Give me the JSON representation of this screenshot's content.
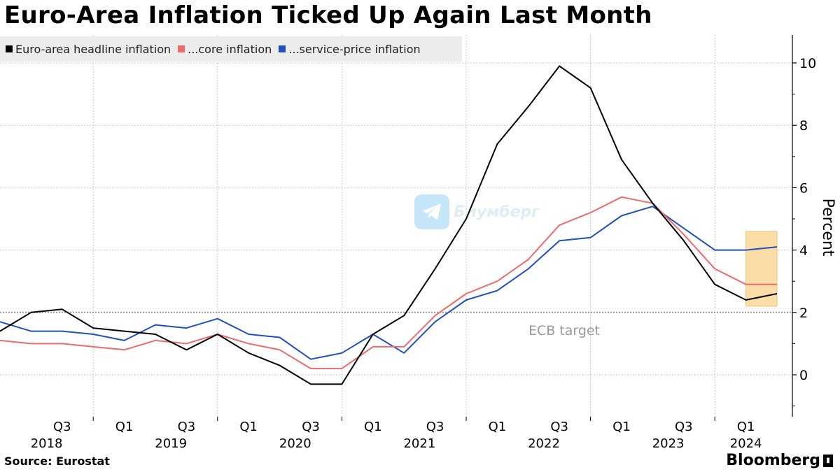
{
  "header": {
    "title": "Euro-Area Inflation Ticked Up Again Last Month"
  },
  "footer": {
    "source": "Source: Eurostat",
    "brand": "Bloomberg"
  },
  "watermark": {
    "text": "Блумберг"
  },
  "chart_data": {
    "type": "line",
    "title": "Euro-Area Inflation Ticked Up Again Last Month",
    "ylabel": "Percent",
    "ylim": [
      -1.2,
      11
    ],
    "yticks": [
      0,
      2,
      4,
      6,
      8,
      10
    ],
    "y_axis_side": "right",
    "grid": true,
    "legend_position": "top-left",
    "x": [
      "2018 Q1",
      "2018 Q2",
      "2018 Q3",
      "2018 Q4",
      "2019 Q1",
      "2019 Q2",
      "2019 Q3",
      "2019 Q4",
      "2020 Q1",
      "2020 Q2",
      "2020 Q3",
      "2020 Q4",
      "2021 Q1",
      "2021 Q2",
      "2021 Q3",
      "2021 Q4",
      "2022 Q1",
      "2022 Q2",
      "2022 Q3",
      "2022 Q4",
      "2023 Q1",
      "2023 Q2",
      "2023 Q3",
      "2023 Q4",
      "2024 Q1",
      "2024 Q2"
    ],
    "x_tick_labels": [
      {
        "label": "Q3",
        "index": 2
      },
      {
        "label": "Q1",
        "index": 4
      },
      {
        "label": "Q3",
        "index": 6
      },
      {
        "label": "Q1",
        "index": 8
      },
      {
        "label": "Q3",
        "index": 10
      },
      {
        "label": "Q1",
        "index": 12
      },
      {
        "label": "Q3",
        "index": 14
      },
      {
        "label": "Q1",
        "index": 16
      },
      {
        "label": "Q3",
        "index": 18
      },
      {
        "label": "Q1",
        "index": 20
      },
      {
        "label": "Q3",
        "index": 22
      },
      {
        "label": "Q1",
        "index": 24
      }
    ],
    "x_year_labels": [
      {
        "label": "2018",
        "index": 1.5
      },
      {
        "label": "2019",
        "index": 5.5
      },
      {
        "label": "2020",
        "index": 9.5
      },
      {
        "label": "2021",
        "index": 13.5
      },
      {
        "label": "2022",
        "index": 17.5
      },
      {
        "label": "2023",
        "index": 21.5
      },
      {
        "label": "2024",
        "index": 24
      }
    ],
    "series": [
      {
        "name": "Euro-area headline inflation",
        "color": "#000000",
        "values": [
          1.4,
          2.0,
          2.1,
          1.5,
          1.4,
          1.3,
          0.8,
          1.3,
          0.7,
          0.3,
          -0.3,
          -0.3,
          1.3,
          1.9,
          3.4,
          5.0,
          7.4,
          8.6,
          9.9,
          9.2,
          6.9,
          5.5,
          4.3,
          2.9,
          2.4,
          2.6
        ]
      },
      {
        "name": "...core inflation",
        "color": "#f06a6a",
        "values": [
          1.1,
          1.0,
          1.0,
          0.9,
          0.8,
          1.1,
          1.0,
          1.3,
          1.0,
          0.8,
          0.2,
          0.2,
          0.9,
          0.9,
          1.9,
          2.6,
          3.0,
          3.7,
          4.8,
          5.2,
          5.7,
          5.5,
          4.5,
          3.4,
          2.9,
          2.9
        ]
      },
      {
        "name": "...service-price inflation",
        "color": "#1f4fc0",
        "values": [
          1.7,
          1.4,
          1.4,
          1.3,
          1.1,
          1.6,
          1.5,
          1.8,
          1.3,
          1.2,
          0.5,
          0.7,
          1.3,
          0.7,
          1.7,
          2.4,
          2.7,
          3.4,
          4.3,
          4.4,
          5.1,
          5.4,
          4.7,
          4.0,
          4.0,
          4.1
        ]
      }
    ],
    "reference_line": {
      "value": 2,
      "label": "ECB target"
    },
    "highlight": {
      "from_index": 24,
      "to_index": 25,
      "y_range": [
        2.2,
        4.6
      ],
      "color": "#fbd89a"
    }
  }
}
